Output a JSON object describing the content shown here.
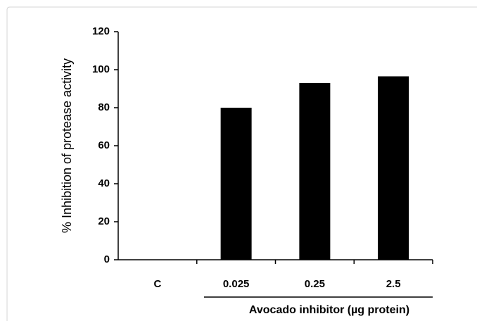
{
  "chart_data": {
    "type": "bar",
    "categories": [
      "C",
      "0.025",
      "0.25",
      "2.5"
    ],
    "values": [
      0,
      80,
      93,
      96.5
    ],
    "color": "#000000",
    "y_label": "% Inhibition of protease activity",
    "x_label": "Avocado inhibitor (µg protein)",
    "ylim": [
      0,
      120
    ],
    "yticks": [
      0,
      20,
      40,
      60,
      80,
      100,
      120
    ]
  }
}
